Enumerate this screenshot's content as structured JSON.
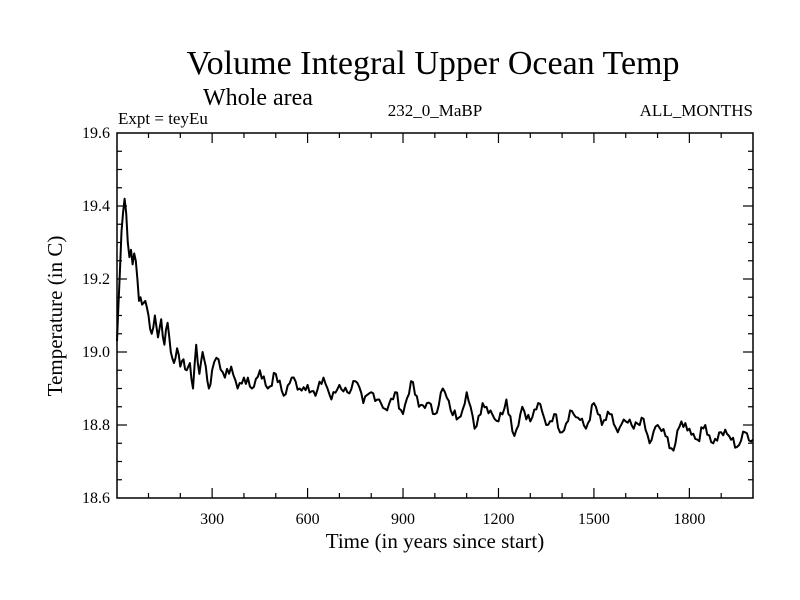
{
  "chart_data": {
    "type": "line",
    "title": "Volume Integral Upper Ocean Temp",
    "subtitle": "Whole area",
    "experiment": "Expt = teyEu",
    "period": "232_0_MaBP",
    "months": "ALL_MONTHS",
    "xlabel": "Time (in years since start)",
    "ylabel": "Temperature (in C)",
    "xlim": [
      1,
      2000
    ],
    "ylim": [
      18.6,
      19.6
    ],
    "x_ticks": [
      300,
      600,
      900,
      1200,
      1500,
      1800
    ],
    "x_tick_labels": [
      "300",
      "600",
      "900",
      "1200",
      "1500",
      "1800"
    ],
    "y_ticks": [
      18.6,
      18.8,
      19.0,
      19.2,
      19.4,
      19.6
    ],
    "y_tick_labels": [
      "18.6",
      "18.8",
      "19.0",
      "19.2",
      "19.4",
      "19.6"
    ],
    "grid": false,
    "series": [
      {
        "name": "Volume integral upper ocean temperature",
        "x": [
          1,
          5,
          10,
          15,
          20,
          25,
          30,
          35,
          40,
          45,
          50,
          55,
          60,
          65,
          70,
          75,
          80,
          90,
          100,
          110,
          120,
          130,
          140,
          150,
          160,
          170,
          180,
          190,
          200,
          210,
          220,
          230,
          240,
          250,
          260,
          270,
          280,
          290,
          300,
          320,
          340,
          360,
          380,
          400,
          425,
          450,
          475,
          500,
          525,
          550,
          575,
          600,
          625,
          650,
          675,
          700,
          725,
          750,
          775,
          800,
          825,
          850,
          875,
          900,
          925,
          950,
          975,
          1000,
          1025,
          1050,
          1075,
          1100,
          1125,
          1150,
          1175,
          1200,
          1225,
          1250,
          1275,
          1300,
          1325,
          1350,
          1375,
          1400,
          1425,
          1450,
          1475,
          1500,
          1525,
          1550,
          1575,
          1600,
          1625,
          1650,
          1675,
          1700,
          1725,
          1750,
          1775,
          1800,
          1825,
          1850,
          1875,
          1900,
          1925,
          1950,
          1975,
          2000
        ],
        "values": [
          19.03,
          19.12,
          19.22,
          19.33,
          19.38,
          19.42,
          19.38,
          19.3,
          19.26,
          19.28,
          19.24,
          19.27,
          19.25,
          19.2,
          19.14,
          19.15,
          19.13,
          19.14,
          19.1,
          19.05,
          19.1,
          19.04,
          19.09,
          19.02,
          19.08,
          19.0,
          18.97,
          19.01,
          18.96,
          18.98,
          18.95,
          18.97,
          18.9,
          19.02,
          18.94,
          19.0,
          18.96,
          18.9,
          18.95,
          18.98,
          18.93,
          18.96,
          18.9,
          18.93,
          18.9,
          18.95,
          18.9,
          18.94,
          18.88,
          18.93,
          18.9,
          18.91,
          18.88,
          18.93,
          18.87,
          18.91,
          18.89,
          18.92,
          18.86,
          18.89,
          18.87,
          18.84,
          18.89,
          18.83,
          18.92,
          18.85,
          18.86,
          18.83,
          18.9,
          18.84,
          18.82,
          18.89,
          18.79,
          18.86,
          18.84,
          18.81,
          18.87,
          18.77,
          18.85,
          18.81,
          18.86,
          18.8,
          18.83,
          18.78,
          18.84,
          18.82,
          18.79,
          18.86,
          18.8,
          18.83,
          18.78,
          18.81,
          18.79,
          18.82,
          18.75,
          18.8,
          18.77,
          18.73,
          18.81,
          18.79,
          18.76,
          18.8,
          18.75,
          18.78,
          18.77,
          18.74,
          18.78,
          18.76
        ]
      }
    ]
  }
}
